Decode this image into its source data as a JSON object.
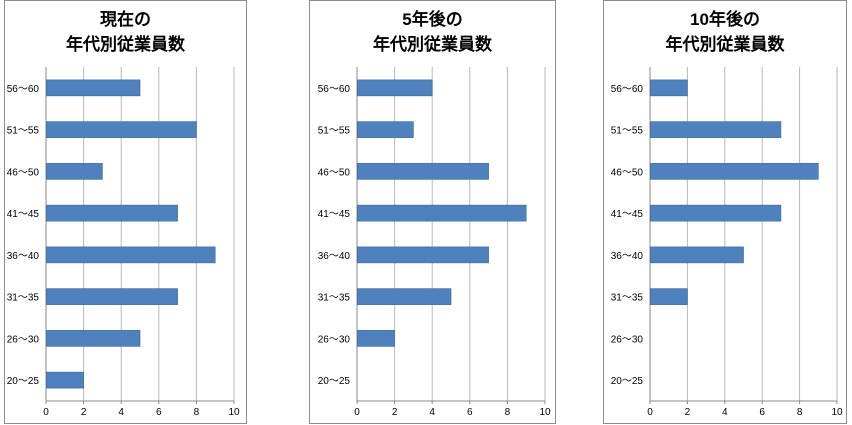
{
  "bar_color": "#4f81bd",
  "bar_border_color": "#3a6592",
  "grid_color": "#b8b8b8",
  "chart_data": [
    {
      "type": "bar",
      "orientation": "horizontal",
      "title_line1": "現在の",
      "title_line2": "年代別従業員数",
      "categories": [
        "56〜60",
        "51〜55",
        "46〜50",
        "41〜45",
        "36〜40",
        "31〜35",
        "26〜30",
        "20〜25"
      ],
      "values": [
        5,
        8,
        3,
        7,
        9,
        7,
        5,
        2
      ],
      "xlim": [
        0,
        10
      ],
      "xticks": [
        "0",
        "2",
        "4",
        "6",
        "8",
        "10"
      ],
      "grid": true
    },
    {
      "type": "bar",
      "orientation": "horizontal",
      "title_line1": "5年後の",
      "title_line2": "年代別従業員数",
      "categories": [
        "56〜60",
        "51〜55",
        "46〜50",
        "41〜45",
        "36〜40",
        "31〜35",
        "26〜30",
        "20〜25"
      ],
      "values": [
        4,
        3,
        7,
        9,
        7,
        5,
        2,
        0
      ],
      "xlim": [
        0,
        10
      ],
      "xticks": [
        "0",
        "2",
        "4",
        "6",
        "8",
        "10"
      ],
      "grid": true
    },
    {
      "type": "bar",
      "orientation": "horizontal",
      "title_line1": "10年後の",
      "title_line2": "年代別従業員数",
      "categories": [
        "56〜60",
        "51〜55",
        "46〜50",
        "41〜45",
        "36〜40",
        "31〜35",
        "26〜30",
        "20〜25"
      ],
      "values": [
        2,
        7,
        9,
        7,
        5,
        2,
        0,
        0
      ],
      "xlim": [
        0,
        10
      ],
      "xticks": [
        "0",
        "2",
        "4",
        "6",
        "8",
        "10"
      ],
      "grid": true
    }
  ]
}
